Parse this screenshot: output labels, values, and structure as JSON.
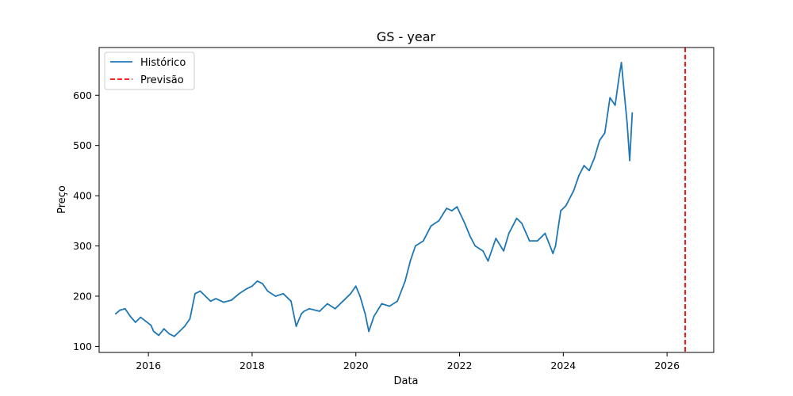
{
  "chart_data": {
    "type": "line",
    "title": "GS - year",
    "xlabel": "Data",
    "ylabel": "Preço",
    "xlim": [
      2015.05,
      2026.9
    ],
    "ylim": [
      88,
      695
    ],
    "x_ticks": [
      2016,
      2018,
      2020,
      2022,
      2024,
      2026
    ],
    "x_tick_labels": [
      "2016",
      "2018",
      "2020",
      "2022",
      "2024",
      "2026"
    ],
    "y_ticks": [
      100,
      200,
      300,
      400,
      500,
      600
    ],
    "y_tick_labels": [
      "100",
      "200",
      "300",
      "400",
      "500",
      "600"
    ],
    "grid": false,
    "legend": {
      "placement": "top-left"
    },
    "series": [
      {
        "name": "Histórico",
        "color": "#1f77b4",
        "style": "solid",
        "x": [
          2015.37,
          2015.45,
          2015.55,
          2015.65,
          2015.75,
          2015.85,
          2015.95,
          2016.05,
          2016.1,
          2016.2,
          2016.3,
          2016.4,
          2016.5,
          2016.6,
          2016.7,
          2016.8,
          2016.9,
          2017.0,
          2017.1,
          2017.2,
          2017.3,
          2017.45,
          2017.6,
          2017.75,
          2017.9,
          2018.0,
          2018.1,
          2018.2,
          2018.3,
          2018.45,
          2018.6,
          2018.75,
          2018.85,
          2018.95,
          2019.0,
          2019.1,
          2019.3,
          2019.45,
          2019.6,
          2019.75,
          2019.9,
          2020.0,
          2020.08,
          2020.18,
          2020.25,
          2020.35,
          2020.5,
          2020.65,
          2020.8,
          2020.95,
          2021.05,
          2021.15,
          2021.3,
          2021.45,
          2021.6,
          2021.75,
          2021.85,
          2021.95,
          2022.1,
          2022.2,
          2022.3,
          2022.45,
          2022.55,
          2022.7,
          2022.85,
          2022.95,
          2023.1,
          2023.2,
          2023.35,
          2023.5,
          2023.65,
          2023.8,
          2023.85,
          2023.95,
          2024.05,
          2024.2,
          2024.3,
          2024.4,
          2024.5,
          2024.6,
          2024.7,
          2024.8,
          2024.9,
          2025.0,
          2025.08,
          2025.12,
          2025.18,
          2025.23,
          2025.28,
          2025.33
        ],
        "y": [
          165,
          172,
          175,
          160,
          148,
          158,
          150,
          142,
          130,
          122,
          135,
          125,
          120,
          130,
          140,
          155,
          205,
          210,
          200,
          190,
          195,
          188,
          192,
          205,
          215,
          220,
          230,
          225,
          210,
          200,
          205,
          190,
          140,
          165,
          170,
          175,
          170,
          185,
          175,
          190,
          205,
          220,
          200,
          165,
          130,
          160,
          185,
          180,
          190,
          230,
          270,
          300,
          310,
          340,
          350,
          375,
          370,
          378,
          345,
          320,
          300,
          290,
          270,
          315,
          290,
          325,
          355,
          345,
          310,
          310,
          325,
          285,
          300,
          370,
          380,
          410,
          440,
          460,
          450,
          475,
          510,
          525,
          595,
          580,
          640,
          665,
          600,
          545,
          470,
          565
        ]
      },
      {
        "name": "Previsão",
        "color": "#ff0000",
        "style": "dashed",
        "vertical_line_at": 2026.35
      }
    ]
  }
}
